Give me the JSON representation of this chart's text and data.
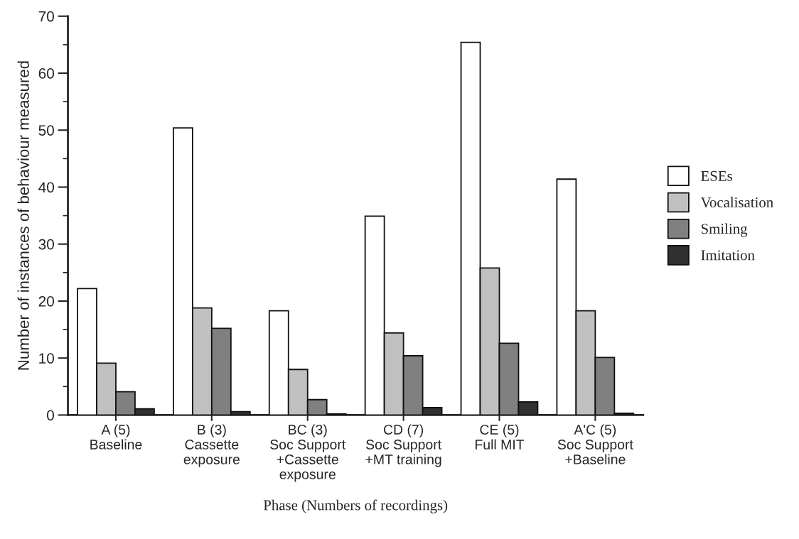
{
  "chart_data": {
    "type": "bar",
    "xlabel": "Phase (Numbers of recordings)",
    "ylabel": "Number of instances of behaviour measured",
    "categories": [
      "A (5)\nBaseline",
      "B (3)\nCassette\nexposure",
      "BC (3)\nSoc Support\n+Cassette\nexposure",
      "CD (7)\nSoc Support\n+MT training",
      "CE (5)\nFull MIT",
      "A'C (5)\nSoc Support\n+Baseline"
    ],
    "series": [
      {
        "name": "ESEs",
        "color": "#ffffff",
        "values": [
          22.2,
          50.4,
          18.3,
          34.9,
          65.4,
          41.4
        ]
      },
      {
        "name": "Vocalisation",
        "color": "#c0c0c0",
        "values": [
          9.1,
          18.8,
          8.0,
          14.4,
          25.8,
          18.3
        ]
      },
      {
        "name": "Smiling",
        "color": "#808080",
        "values": [
          4.1,
          15.2,
          2.7,
          10.4,
          12.6,
          10.1
        ]
      },
      {
        "name": "Imitation",
        "color": "#303030",
        "values": [
          1.1,
          0.6,
          0.2,
          1.3,
          2.3,
          0.3
        ]
      }
    ],
    "ylim": [
      0,
      70
    ],
    "yticks": [
      0,
      10,
      20,
      30,
      40,
      50,
      60,
      70
    ],
    "grid": false,
    "legend": "right"
  }
}
